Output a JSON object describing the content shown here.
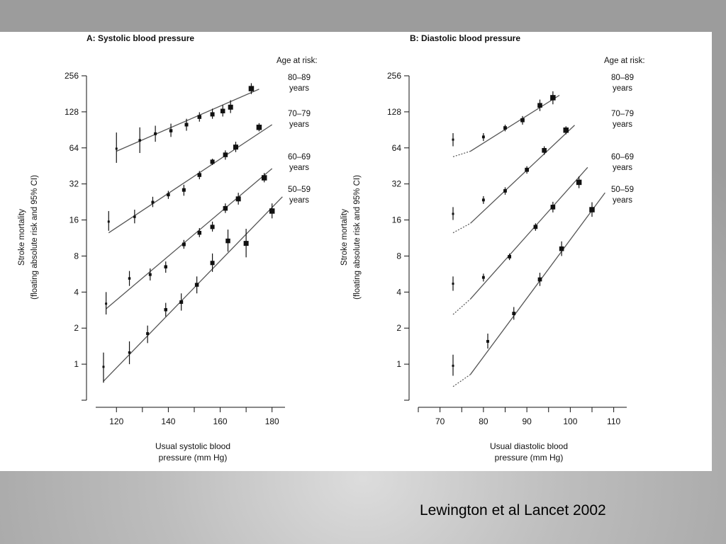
{
  "citation": "Lewington et al Lancet 2002",
  "colors": {
    "ink": "#111111",
    "line": "#555555",
    "panel": "#ffffff"
  },
  "chart_data": [
    {
      "type": "scatter",
      "title": "A: Systolic blood pressure",
      "xlabel": [
        "Usual systolic blood",
        "pressure (mm Hg)"
      ],
      "ylabel": [
        "Stroke mortality",
        "(floating absolute risk and 95% CI)"
      ],
      "xlim": [
        112,
        185
      ],
      "ylim_log2": [
        -1.0,
        8.0
      ],
      "x_ticks": [
        120,
        140,
        160,
        180
      ],
      "y_ticks": [
        1,
        2,
        4,
        8,
        16,
        32,
        64,
        128,
        256
      ],
      "y_tick_labels": [
        "1",
        "2",
        "4",
        "8",
        "16",
        "32",
        "64",
        "128",
        "256"
      ],
      "legend_title": "Age at risk:",
      "series": [
        {
          "name": "80–89",
          "unit": "years",
          "points": [
            [
              120,
              63,
              48,
              86
            ],
            [
              129,
              74,
              58,
              95
            ],
            [
              135,
              84,
              72,
              98
            ],
            [
              141,
              89,
              79,
              102
            ],
            [
              147,
              100,
              89,
              112
            ],
            [
              152,
              116,
              106,
              127
            ],
            [
              157,
              122,
              112,
              136
            ],
            [
              161,
              130,
              117,
              146
            ],
            [
              164,
              140,
              125,
              160
            ],
            [
              172,
              200,
              180,
              222
            ]
          ],
          "fit": [
            [
              120,
              60
            ],
            [
              175,
              198
            ]
          ],
          "fit_ext": null
        },
        {
          "name": "70–79",
          "unit": "years",
          "points": [
            [
              117,
              15.5,
              13,
              19
            ],
            [
              127,
              17,
              15,
              19.5
            ],
            [
              134,
              22.5,
              20.5,
              25
            ],
            [
              140,
              26,
              24,
              28
            ],
            [
              146,
              28.5,
              25.5,
              31.5
            ],
            [
              152,
              38,
              35,
              41
            ],
            [
              157,
              49,
              46,
              52
            ],
            [
              162,
              56,
              51,
              61
            ],
            [
              166,
              65,
              59,
              72
            ],
            [
              175,
              95,
              88,
              103
            ]
          ],
          "fit": [
            [
              117,
              12.5
            ],
            [
              180,
              100
            ]
          ],
          "fit_ext": null
        },
        {
          "name": "60–69",
          "unit": "years",
          "points": [
            [
              116,
              3.2,
              2.6,
              4.0
            ],
            [
              125,
              5.2,
              4.5,
              6.0
            ],
            [
              133,
              5.6,
              5.0,
              6.3
            ],
            [
              139,
              6.5,
              5.8,
              7.2
            ],
            [
              146,
              10,
              9.2,
              10.9
            ],
            [
              152,
              12.5,
              11.5,
              13.7
            ],
            [
              157,
              14,
              12.8,
              15.5
            ],
            [
              162,
              20,
              18.3,
              22
            ],
            [
              167,
              24,
              21.5,
              27
            ],
            [
              177,
              36,
              33,
              39.5
            ]
          ],
          "fit": [
            [
              116,
              2.9
            ],
            [
              180,
              43
            ]
          ],
          "fit_ext": null
        },
        {
          "name": "50–59",
          "unit": "years",
          "points": [
            [
              115,
              0.95,
              0.7,
              1.25
            ],
            [
              125,
              1.25,
              1.0,
              1.55
            ],
            [
              132,
              1.8,
              1.5,
              2.1
            ],
            [
              139,
              2.85,
              2.5,
              3.25
            ],
            [
              145,
              3.3,
              2.8,
              3.9
            ],
            [
              151,
              4.6,
              3.9,
              5.4
            ],
            [
              157,
              7,
              5.9,
              8.4
            ],
            [
              163,
              10.7,
              8.7,
              13.3
            ],
            [
              170,
              10.2,
              7.8,
              13.5
            ],
            [
              180,
              19,
              16.5,
              22
            ]
          ],
          "fit": [
            [
              115,
              0.72
            ],
            [
              184,
              25
            ]
          ],
          "fit_ext": null
        }
      ]
    },
    {
      "type": "scatter",
      "title": "B: Diastolic blood pressure",
      "xlabel": [
        "Usual diastolic blood",
        "pressure (mm Hg)"
      ],
      "ylabel": [
        "Stroke mortality",
        "(floating absolute risk and 95% CI)"
      ],
      "xlim": [
        65,
        113
      ],
      "ylim_log2": [
        -1.0,
        8.0
      ],
      "x_ticks": [
        70,
        80,
        90,
        100,
        110
      ],
      "y_ticks": [
        1,
        2,
        4,
        8,
        16,
        32,
        64,
        128,
        256
      ],
      "y_tick_labels": [
        "1",
        "2",
        "4",
        "8",
        "16",
        "32",
        "64",
        "128",
        "256"
      ],
      "legend_title": "Age at risk:",
      "series": [
        {
          "name": "80–89",
          "unit": "years",
          "points": [
            [
              73,
              75,
              66,
              85
            ],
            [
              80,
              79,
              73,
              85
            ],
            [
              85,
              94,
              88,
              100
            ],
            [
              89,
              109,
              100,
              118
            ],
            [
              93,
              145,
              130,
              162
            ],
            [
              96,
              168,
              148,
              190
            ]
          ],
          "fit": [
            [
              77,
              60
            ],
            [
              97.5,
              176
            ]
          ],
          "fit_ext": [
            [
              73,
              54
            ],
            [
              77,
              60
            ]
          ]
        },
        {
          "name": "70–79",
          "unit": "years",
          "points": [
            [
              73,
              18,
              16,
              20.5
            ],
            [
              80,
              23.5,
              21.8,
              25.3
            ],
            [
              85,
              28,
              26,
              30
            ],
            [
              90,
              42,
              39,
              45
            ],
            [
              94,
              61,
              56,
              66
            ],
            [
              99,
              90,
              83,
              97
            ]
          ],
          "fit": [
            [
              77,
              15
            ],
            [
              101,
              99
            ]
          ],
          "fit_ext": [
            [
              73,
              12.5
            ],
            [
              77,
              15
            ]
          ]
        },
        {
          "name": "60–69",
          "unit": "years",
          "points": [
            [
              73,
              4.7,
              4.1,
              5.4
            ],
            [
              80,
              5.3,
              4.9,
              5.7
            ],
            [
              86,
              7.9,
              7.4,
              8.4
            ],
            [
              92,
              14,
              13,
              15
            ],
            [
              96,
              20.5,
              18.5,
              22.7
            ],
            [
              102,
              33,
              29.5,
              37
            ]
          ],
          "fit": [
            [
              77,
              3.5
            ],
            [
              104,
              44
            ]
          ],
          "fit_ext": [
            [
              73,
              2.6
            ],
            [
              77,
              3.5
            ]
          ]
        },
        {
          "name": "50–59",
          "unit": "years",
          "points": [
            [
              73,
              0.97,
              0.8,
              1.2
            ],
            [
              81,
              1.55,
              1.35,
              1.8
            ],
            [
              87,
              2.65,
              2.35,
              3.0
            ],
            [
              93,
              5.1,
              4.5,
              5.8
            ],
            [
              98,
              9.2,
              8.0,
              10.6
            ],
            [
              105,
              19.5,
              17,
              22.5
            ]
          ],
          "fit": [
            [
              77,
              0.82
            ],
            [
              108,
              27
            ]
          ],
          "fit_ext": [
            [
              73,
              0.65
            ],
            [
              77,
              0.82
            ]
          ]
        }
      ]
    }
  ]
}
